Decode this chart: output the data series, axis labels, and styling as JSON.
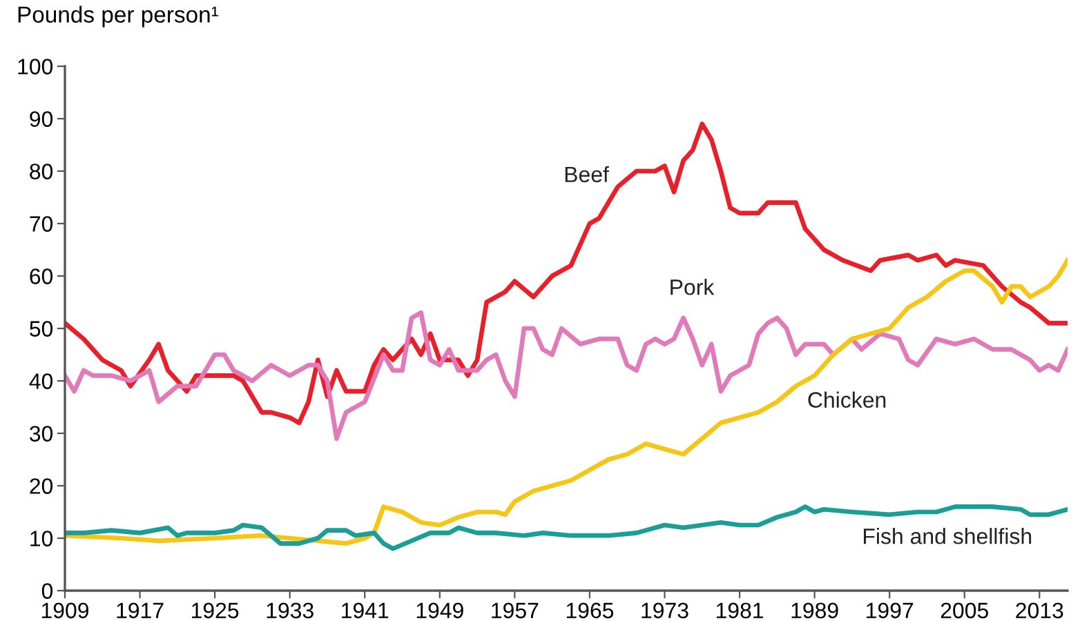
{
  "chart_data": {
    "type": "line",
    "ylabel": "Pounds per person¹",
    "xlim": [
      1909,
      2016
    ],
    "ylim": [
      0,
      100
    ],
    "xticks": [
      1909,
      1917,
      1925,
      1933,
      1941,
      1949,
      1957,
      1965,
      1973,
      1981,
      1989,
      1997,
      2005,
      2013
    ],
    "yticks": [
      0,
      10,
      20,
      30,
      40,
      50,
      60,
      70,
      80,
      90,
      100
    ],
    "grid": false,
    "legend": false,
    "marker": "none",
    "line_style": "solid",
    "series": [
      {
        "name": "Beef",
        "color": "#e8202a",
        "x": [
          1909,
          1911,
          1913,
          1915,
          1916,
          1918,
          1919,
          1920,
          1922,
          1923,
          1927,
          1928,
          1930,
          1931,
          1933,
          1934,
          1935,
          1936,
          1937,
          1938,
          1939,
          1941,
          1942,
          1943,
          1944,
          1946,
          1947,
          1948,
          1949,
          1951,
          1952,
          1953,
          1954,
          1956,
          1957,
          1959,
          1961,
          1963,
          1965,
          1966,
          1968,
          1970,
          1972,
          1973,
          1974,
          1975,
          1976,
          1977,
          1978,
          1979,
          1980,
          1981,
          1983,
          1984,
          1987,
          1988,
          1990,
          1992,
          1995,
          1996,
          1999,
          2000,
          2002,
          2003,
          2004,
          2007,
          2009,
          2011,
          2012,
          2014,
          2016
        ],
        "values": [
          51,
          48,
          44,
          42,
          39,
          44,
          47,
          42,
          38,
          41,
          41,
          40,
          34,
          34,
          33,
          32,
          36,
          44,
          37,
          42,
          38,
          38,
          43,
          46,
          44,
          48,
          45,
          49,
          44,
          44,
          41,
          44,
          55,
          57,
          59,
          56,
          60,
          62,
          70,
          71,
          77,
          80,
          80,
          81,
          76,
          82,
          84,
          89,
          86,
          80,
          73,
          72,
          72,
          74,
          74,
          69,
          65,
          63,
          61,
          63,
          64,
          63,
          64,
          62,
          63,
          62,
          58,
          55,
          54,
          51,
          51
        ]
      },
      {
        "name": "Pork",
        "color": "#e07ab8",
        "x": [
          1909,
          1910,
          1911,
          1912,
          1914,
          1916,
          1918,
          1919,
          1921,
          1923,
          1925,
          1926,
          1927,
          1929,
          1931,
          1933,
          1935,
          1936,
          1937,
          1938,
          1939,
          1941,
          1943,
          1944,
          1945,
          1946,
          1947,
          1948,
          1949,
          1950,
          1951,
          1953,
          1954,
          1955,
          1956,
          1957,
          1958,
          1959,
          1960,
          1961,
          1962,
          1964,
          1966,
          1968,
          1969,
          1970,
          1971,
          1972,
          1973,
          1974,
          1975,
          1976,
          1977,
          1978,
          1979,
          1980,
          1981,
          1982,
          1983,
          1984,
          1985,
          1986,
          1987,
          1988,
          1990,
          1991,
          1993,
          1994,
          1996,
          1998,
          1999,
          2000,
          2002,
          2004,
          2006,
          2008,
          2010,
          2011,
          2012,
          2013,
          2014,
          2015,
          2016
        ],
        "values": [
          41,
          38,
          42,
          41,
          41,
          40,
          42,
          36,
          39,
          39,
          45,
          45,
          42,
          40,
          43,
          41,
          43,
          43,
          40,
          29,
          34,
          36,
          45,
          42,
          42,
          52,
          53,
          44,
          43,
          46,
          42,
          42,
          44,
          45,
          40,
          37,
          50,
          50,
          46,
          45,
          50,
          47,
          48,
          48,
          43,
          42,
          47,
          48,
          47,
          48,
          52,
          48,
          43,
          47,
          38,
          41,
          42,
          43,
          49,
          51,
          52,
          50,
          45,
          47,
          47,
          45,
          48,
          46,
          49,
          48,
          44,
          43,
          48,
          47,
          48,
          46,
          46,
          45,
          44,
          42,
          43,
          42,
          46
        ]
      },
      {
        "name": "Chicken",
        "color": "#f5c518",
        "x": [
          1909,
          1915,
          1919,
          1925,
          1930,
          1933,
          1936,
          1939,
          1941,
          1942,
          1943,
          1944,
          1945,
          1947,
          1949,
          1951,
          1953,
          1955,
          1956,
          1957,
          1959,
          1961,
          1963,
          1965,
          1967,
          1969,
          1971,
          1973,
          1975,
          1977,
          1979,
          1981,
          1983,
          1985,
          1987,
          1989,
          1991,
          1993,
          1995,
          1997,
          1999,
          2001,
          2003,
          2005,
          2006,
          2008,
          2009,
          2010,
          2011,
          2012,
          2014,
          2015,
          2016
        ],
        "values": [
          10.5,
          10,
          9.5,
          10,
          10.5,
          10,
          9.5,
          9,
          10,
          11,
          16,
          15.5,
          15,
          13,
          12.5,
          14,
          15,
          15,
          14.5,
          17,
          19,
          20,
          21,
          23,
          25,
          26,
          28,
          27,
          26,
          29,
          32,
          33,
          34,
          36,
          39,
          41,
          45,
          48,
          49,
          50,
          54,
          56,
          59,
          61,
          61,
          58,
          55,
          58,
          58,
          56,
          58,
          60,
          63
        ]
      },
      {
        "name": "Fish and shellfish",
        "color": "#1a9e96",
        "x": [
          1909,
          1911,
          1914,
          1917,
          1920,
          1921,
          1922,
          1925,
          1927,
          1928,
          1930,
          1932,
          1934,
          1936,
          1937,
          1939,
          1940,
          1942,
          1943,
          1944,
          1946,
          1948,
          1950,
          1951,
          1953,
          1955,
          1958,
          1960,
          1963,
          1967,
          1970,
          1973,
          1975,
          1977,
          1979,
          1981,
          1983,
          1985,
          1987,
          1988,
          1989,
          1990,
          1993,
          1997,
          2000,
          2002,
          2004,
          2006,
          2008,
          2011,
          2012,
          2014,
          2016
        ],
        "values": [
          11,
          11,
          11.5,
          11,
          12,
          10.5,
          11,
          11,
          11.5,
          12.5,
          12,
          9,
          9,
          10,
          11.5,
          11.5,
          10.5,
          11,
          9,
          8,
          9.5,
          11,
          11,
          12,
          11,
          11,
          10.5,
          11,
          10.5,
          10.5,
          11,
          12.5,
          12,
          12.5,
          13,
          12.5,
          12.5,
          14,
          15,
          16,
          15,
          15.5,
          15,
          14.5,
          15,
          15,
          16,
          16,
          16,
          15.5,
          14.5,
          14.5,
          15.5
        ]
      }
    ]
  }
}
